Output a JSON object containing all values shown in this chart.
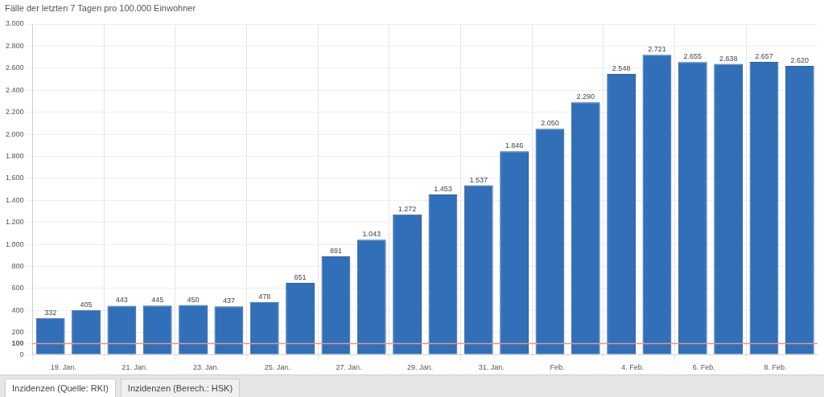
{
  "chart_data": {
    "type": "bar",
    "title": "Fälle der letzten 7 Tagen pro 100.000 Einwohner",
    "categories": [
      "19. Jan.",
      null,
      "21. Jan.",
      null,
      "23. Jan.",
      null,
      "25. Jan.",
      null,
      "27. Jan.",
      null,
      "29. Jan.",
      null,
      "31. Jan.",
      null,
      "Feb.",
      null,
      "4. Feb.",
      null,
      "6. Feb.",
      null,
      "8. Feb.",
      null
    ],
    "values": [
      332,
      405,
      443,
      445,
      450,
      437,
      478,
      651,
      891,
      1043,
      1272,
      1453,
      1537,
      1846,
      2050,
      2290,
      2548,
      2721,
      2655,
      2638,
      2657,
      2620
    ],
    "value_labels": [
      "332",
      "405",
      "443",
      "445",
      "450",
      "437",
      "478",
      "651",
      "891",
      "1.043",
      "1.272",
      "1.453",
      "1.537",
      "1.846",
      "2.050",
      "2.290",
      "2.548",
      "2.721",
      "2.655",
      "2.638",
      "2.657",
      "2.620"
    ],
    "color": "#3170b9",
    "ylim": [
      0,
      3000
    ],
    "yticks": [
      0,
      100,
      200,
      400,
      600,
      800,
      {
        "value": 1000,
        "label": "1.000"
      },
      {
        "value": 1200,
        "label": "1.200"
      },
      {
        "value": 1400,
        "label": "1.400"
      },
      {
        "value": 1600,
        "label": "1.600"
      },
      {
        "value": 1800,
        "label": "1.800"
      },
      {
        "value": 2000,
        "label": "2.000"
      },
      {
        "value": 2200,
        "label": "2.200"
      },
      {
        "value": 2400,
        "label": "2.400"
      },
      {
        "value": 2600,
        "label": "2.600"
      },
      {
        "value": 2800,
        "label": "2.800"
      },
      {
        "value": 3000,
        "label": "3.000"
      }
    ],
    "ref_lines": [
      {
        "axis": "y",
        "value": 100,
        "color": "#e8958a"
      }
    ],
    "grid": true,
    "legend": false,
    "annotations": [
      "Inzidenzen (Quelle: RKI)",
      "Inzidenzen (Berech.: HSK)"
    ]
  }
}
